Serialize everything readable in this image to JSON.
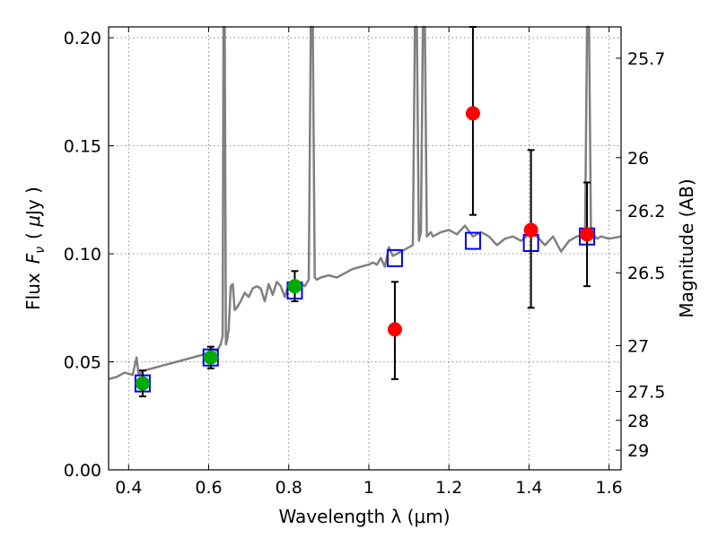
{
  "chart_data": {
    "type": "scatter",
    "title": "",
    "xlabel": "Wavelength  λ (μm)",
    "ylabel": "Flux  F_ν  ( μJy )",
    "ylabel_parts": {
      "prefix": "Flux",
      "symbol": "F",
      "subscript": "ν",
      "unit_open": "( ",
      "unit_mu": "μ",
      "unit_rest": "Jy )"
    },
    "y2label": "Magnitude (AB)",
    "xlim": [
      0.35,
      1.63
    ],
    "ylim": [
      0.0,
      0.205
    ],
    "grid": true,
    "x_ticks": [
      {
        "value": 0.4,
        "label": "0.4"
      },
      {
        "value": 0.6,
        "label": "0.6"
      },
      {
        "value": 0.8,
        "label": "0.8"
      },
      {
        "value": 1.0,
        "label": "1"
      },
      {
        "value": 1.2,
        "label": "1.2"
      },
      {
        "value": 1.4,
        "label": "1.4"
      },
      {
        "value": 1.6,
        "label": "1.6"
      }
    ],
    "y_ticks": [
      {
        "value": 0.0,
        "label": "0.00"
      },
      {
        "value": 0.05,
        "label": "0.05"
      },
      {
        "value": 0.1,
        "label": "0.10"
      },
      {
        "value": 0.15,
        "label": "0.15"
      },
      {
        "value": 0.2,
        "label": "0.20"
      }
    ],
    "y2_ticks": [
      {
        "flux": 0.1905,
        "label": "25.7"
      },
      {
        "flux": 0.1445,
        "label": "26"
      },
      {
        "flux": 0.12,
        "label": "26.2"
      },
      {
        "flux": 0.0912,
        "label": "26.5"
      },
      {
        "flux": 0.0575,
        "label": "27"
      },
      {
        "flux": 0.0363,
        "label": "27.5"
      },
      {
        "flux": 0.0229,
        "label": "28"
      },
      {
        "flux": 0.0091,
        "label": "29"
      }
    ],
    "series": [
      {
        "kind": "line",
        "color": "#808080",
        "x": [
          0.35,
          0.37,
          0.39,
          0.41,
          0.42,
          0.425,
          0.43,
          0.44,
          0.46,
          0.48,
          0.5,
          0.52,
          0.54,
          0.56,
          0.58,
          0.6,
          0.61,
          0.62,
          0.63,
          0.635,
          0.637,
          0.64,
          0.643,
          0.646,
          0.65,
          0.655,
          0.66,
          0.665,
          0.67,
          0.68,
          0.69,
          0.7,
          0.71,
          0.72,
          0.73,
          0.74,
          0.75,
          0.76,
          0.77,
          0.78,
          0.79,
          0.8,
          0.82,
          0.84,
          0.85,
          0.855,
          0.86,
          0.865,
          0.87,
          0.88,
          0.9,
          0.92,
          0.94,
          0.96,
          0.98,
          1.0,
          1.01,
          1.02,
          1.03,
          1.04,
          1.05,
          1.06,
          1.07,
          1.08,
          1.09,
          1.1,
          1.11,
          1.115,
          1.12,
          1.125,
          1.13,
          1.135,
          1.14,
          1.145,
          1.15,
          1.155,
          1.16,
          1.17,
          1.18,
          1.2,
          1.22,
          1.24,
          1.26,
          1.28,
          1.3,
          1.32,
          1.34,
          1.36,
          1.38,
          1.4,
          1.42,
          1.44,
          1.46,
          1.48,
          1.5,
          1.52,
          1.54,
          1.545,
          1.55,
          1.555,
          1.56,
          1.57,
          1.58,
          1.6,
          1.63
        ],
        "y": [
          0.042,
          0.043,
          0.045,
          0.044,
          0.052,
          0.044,
          0.045,
          0.046,
          0.047,
          0.048,
          0.049,
          0.05,
          0.051,
          0.052,
          0.053,
          0.054,
          0.056,
          0.055,
          0.058,
          0.062,
          0.205,
          0.205,
          0.058,
          0.06,
          0.065,
          0.085,
          0.086,
          0.074,
          0.075,
          0.078,
          0.082,
          0.08,
          0.084,
          0.085,
          0.084,
          0.078,
          0.086,
          0.081,
          0.087,
          0.085,
          0.08,
          0.086,
          0.087,
          0.085,
          0.088,
          0.205,
          0.205,
          0.089,
          0.088,
          0.089,
          0.09,
          0.089,
          0.091,
          0.093,
          0.094,
          0.095,
          0.096,
          0.095,
          0.098,
          0.094,
          0.103,
          0.099,
          0.1,
          0.101,
          0.102,
          0.103,
          0.104,
          0.205,
          0.205,
          0.106,
          0.11,
          0.205,
          0.205,
          0.108,
          0.109,
          0.11,
          0.108,
          0.109,
          0.11,
          0.111,
          0.109,
          0.113,
          0.108,
          0.11,
          0.108,
          0.104,
          0.107,
          0.108,
          0.106,
          0.109,
          0.108,
          0.104,
          0.108,
          0.101,
          0.106,
          0.108,
          0.109,
          0.205,
          0.205,
          0.108,
          0.109,
          0.107,
          0.108,
          0.107,
          0.108
        ]
      },
      {
        "kind": "points",
        "marker": "square",
        "color": "#0000ff",
        "points": [
          {
            "x": 0.435,
            "y": 0.04
          },
          {
            "x": 0.605,
            "y": 0.052
          },
          {
            "x": 0.815,
            "y": 0.083
          },
          {
            "x": 1.065,
            "y": 0.098
          },
          {
            "x": 1.26,
            "y": 0.106
          },
          {
            "x": 1.405,
            "y": 0.105
          },
          {
            "x": 1.545,
            "y": 0.108
          }
        ]
      },
      {
        "kind": "points",
        "marker": "circle",
        "color": "#00aa00",
        "points": [
          {
            "x": 0.435,
            "y": 0.04,
            "ylo": 0.034,
            "yhi": 0.046
          },
          {
            "x": 0.605,
            "y": 0.052,
            "ylo": 0.047,
            "yhi": 0.057
          },
          {
            "x": 0.815,
            "y": 0.085,
            "ylo": 0.078,
            "yhi": 0.092
          }
        ]
      },
      {
        "kind": "points",
        "marker": "circle",
        "color": "#ff0000",
        "points": [
          {
            "x": 1.065,
            "y": 0.065,
            "ylo": 0.042,
            "yhi": 0.087
          },
          {
            "x": 1.26,
            "y": 0.165,
            "ylo": 0.118,
            "yhi": 0.205
          },
          {
            "x": 1.405,
            "y": 0.111,
            "ylo": 0.075,
            "yhi": 0.148
          },
          {
            "x": 1.545,
            "y": 0.109,
            "ylo": 0.085,
            "yhi": 0.133
          }
        ]
      }
    ]
  }
}
